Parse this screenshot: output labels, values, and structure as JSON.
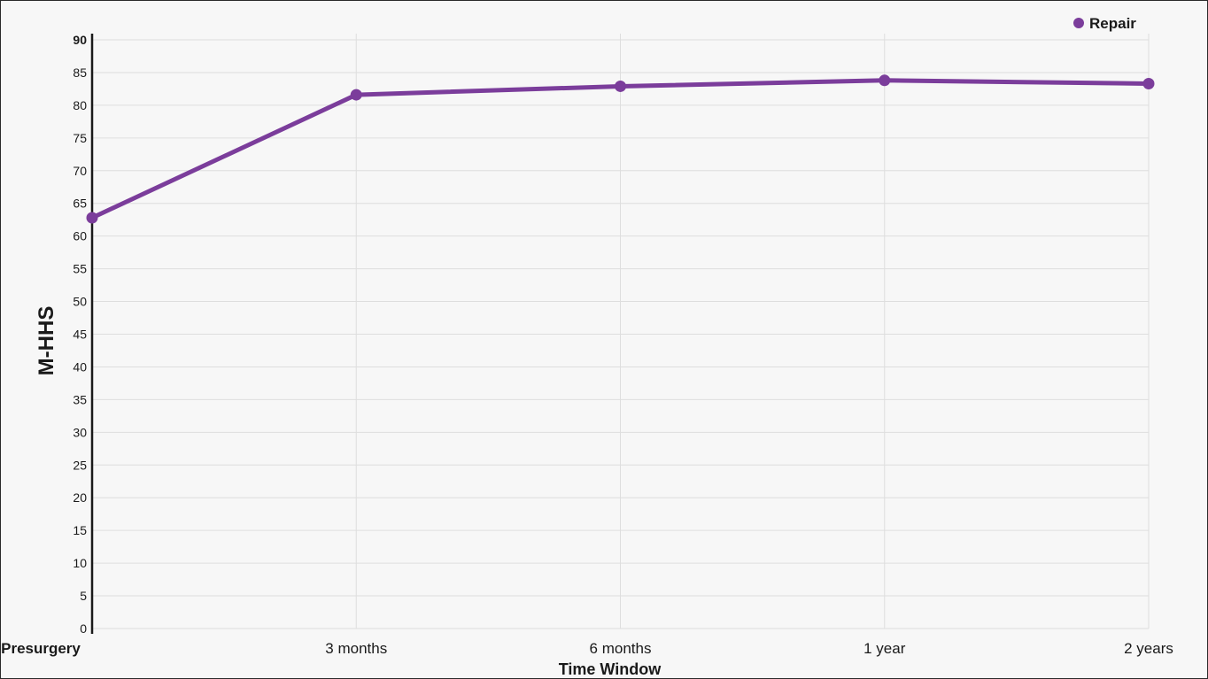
{
  "chart_data": {
    "type": "line",
    "title": "",
    "xlabel": "Time Window",
    "ylabel": "M-HHS",
    "categories": [
      "Presurgery",
      "3 months",
      "6 months",
      "1 year",
      "2 years"
    ],
    "series": [
      {
        "name": "Repair",
        "color": "#7b3d9b",
        "values": [
          62.8,
          81.6,
          82.9,
          83.8,
          83.3
        ]
      }
    ],
    "ylim": [
      0,
      90
    ],
    "yticks": [
      0,
      5,
      10,
      15,
      20,
      25,
      30,
      35,
      40,
      45,
      50,
      55,
      60,
      65,
      70,
      75,
      80,
      85,
      90
    ],
    "grid": true,
    "legend_position": "top-right"
  }
}
